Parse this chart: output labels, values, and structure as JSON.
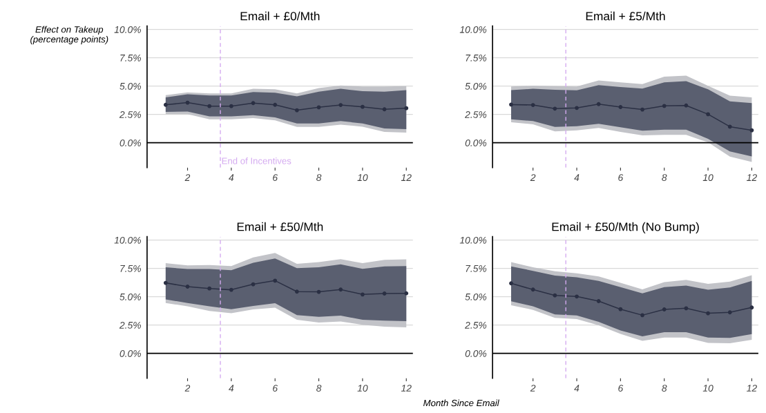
{
  "chart_data": [
    {
      "type": "line",
      "title": "Email + £0/Mth",
      "ylabel": "Effect on Takeup\n(percentage points)",
      "x": [
        1,
        2,
        3,
        4,
        5,
        6,
        7,
        8,
        9,
        10,
        11,
        12
      ],
      "series": [
        {
          "color": "#c2c3c8",
          "values": [
            null,
            null,
            null,
            null,
            null,
            null,
            null,
            null,
            null,
            null,
            null,
            null
          ],
          "lower": [
            2.52,
            2.52,
            2.07,
            2.07,
            2.17,
            1.97,
            1.4,
            1.4,
            1.6,
            1.42,
            0.96,
            0.9
          ],
          "upper": [
            4.2,
            4.45,
            4.35,
            4.35,
            4.76,
            4.72,
            4.35,
            4.82,
            5.06,
            4.96,
            4.96,
            5.0
          ]
        },
        {
          "color": "#5a5f70",
          "values": [
            null,
            null,
            null,
            null,
            null,
            null,
            null,
            null,
            null,
            null,
            null,
            null
          ],
          "lower": [
            2.72,
            2.76,
            2.32,
            2.32,
            2.44,
            2.24,
            1.71,
            1.71,
            1.91,
            1.71,
            1.26,
            1.2
          ],
          "upper": [
            4.0,
            4.27,
            4.17,
            4.17,
            4.47,
            4.41,
            4.1,
            4.51,
            4.76,
            4.55,
            4.51,
            4.65
          ]
        },
        {
          "color": "#2b3044",
          "values": [
            3.35,
            3.54,
            3.23,
            3.23,
            3.5,
            3.35,
            2.87,
            3.13,
            3.33,
            3.17,
            2.95,
            3.05
          ]
        }
      ],
      "xlim": [
        0.15,
        12.3
      ],
      "ylim": [
        -2.2,
        10.3
      ],
      "xticks": [
        2,
        4,
        6,
        8,
        10,
        12
      ],
      "yticks": [
        {
          "value": 0,
          "label": "0.0%"
        },
        {
          "value": 2.5,
          "label": "2.5%"
        },
        {
          "value": 5,
          "label": "5.0%"
        },
        {
          "value": 7.5,
          "label": "7.5%"
        },
        {
          "value": 10,
          "label": "10.0%"
        }
      ],
      "ref_lines": [
        {
          "axis": "y",
          "value": 0,
          "color": "#000000",
          "line_style": "solid"
        },
        {
          "axis": "x",
          "value": 3.5,
          "label": "End of Incentives",
          "color": "#d4aaf0",
          "line_style": "dashed"
        }
      ],
      "grid": "y",
      "legend": false,
      "marker": "circle"
    },
    {
      "type": "line",
      "title": "Email + £5/Mth",
      "x": [
        1,
        2,
        3,
        4,
        5,
        6,
        7,
        8,
        9,
        10,
        11,
        12
      ],
      "series": [
        {
          "color": "#c2c3c8",
          "values": [
            null,
            null,
            null,
            null,
            null,
            null,
            null,
            null,
            null,
            null,
            null,
            null
          ],
          "lower": [
            1.81,
            1.63,
            1.0,
            1.1,
            1.3,
            0.96,
            0.65,
            0.69,
            0.69,
            0.04,
            -1.22,
            -1.7
          ],
          "upper": [
            4.96,
            5.04,
            5.0,
            4.96,
            5.49,
            5.33,
            5.18,
            5.83,
            5.93,
            5.02,
            4.15,
            4.0
          ]
        },
        {
          "color": "#5a5f70",
          "values": [
            null,
            null,
            null,
            null,
            null,
            null,
            null,
            null,
            null,
            null,
            null,
            null
          ],
          "lower": [
            2.07,
            1.91,
            1.4,
            1.46,
            1.67,
            1.36,
            1.06,
            1.16,
            1.16,
            0.35,
            -0.77,
            -1.2
          ],
          "upper": [
            4.65,
            4.76,
            4.67,
            4.63,
            5.08,
            4.92,
            4.78,
            5.33,
            5.43,
            4.72,
            3.66,
            3.5
          ]
        },
        {
          "color": "#2b3044",
          "values": [
            3.37,
            3.33,
            3.01,
            3.07,
            3.41,
            3.15,
            2.93,
            3.25,
            3.29,
            2.52,
            1.42,
            1.1
          ]
        }
      ],
      "xlim": [
        0.15,
        12.3
      ],
      "ylim": [
        -2.2,
        10.3
      ],
      "xticks": [
        2,
        4,
        6,
        8,
        10,
        12
      ],
      "yticks": [
        {
          "value": 0,
          "label": "0.0%"
        },
        {
          "value": 2.5,
          "label": "2.5%"
        },
        {
          "value": 5,
          "label": "5.0%"
        },
        {
          "value": 7.5,
          "label": "7.5%"
        },
        {
          "value": 10,
          "label": "10.0%"
        }
      ],
      "ref_lines": [
        {
          "axis": "y",
          "value": 0,
          "color": "#000000",
          "line_style": "solid"
        },
        {
          "axis": "x",
          "value": 3.5,
          "color": "#d4aaf0",
          "line_style": "dashed"
        }
      ],
      "grid": "y",
      "legend": false,
      "marker": "circle"
    },
    {
      "type": "line",
      "title": "Email + £50/Mth",
      "x": [
        1,
        2,
        3,
        4,
        5,
        6,
        7,
        8,
        9,
        10,
        11,
        12
      ],
      "series": [
        {
          "color": "#c2c3c8",
          "values": [
            null,
            null,
            null,
            null,
            null,
            null,
            null,
            null,
            null,
            null,
            null,
            null
          ],
          "lower": [
            4.45,
            4.15,
            3.74,
            3.54,
            3.88,
            4.04,
            2.97,
            2.72,
            2.82,
            2.52,
            2.36,
            2.3
          ],
          "upper": [
            7.97,
            7.76,
            7.8,
            7.7,
            8.46,
            8.86,
            7.9,
            8.05,
            8.31,
            7.97,
            8.25,
            8.3
          ]
        },
        {
          "color": "#5a5f70",
          "values": [
            null,
            null,
            null,
            null,
            null,
            null,
            null,
            null,
            null,
            null,
            null,
            null
          ],
          "lower": [
            4.76,
            4.45,
            4.15,
            3.9,
            4.19,
            4.43,
            3.37,
            3.23,
            3.33,
            2.97,
            2.89,
            2.85
          ],
          "upper": [
            7.6,
            7.44,
            7.44,
            7.34,
            8.0,
            8.37,
            7.52,
            7.6,
            7.85,
            7.46,
            7.68,
            7.7
          ]
        },
        {
          "color": "#2b3044",
          "values": [
            6.22,
            5.89,
            5.73,
            5.61,
            6.1,
            6.42,
            5.45,
            5.43,
            5.63,
            5.2,
            5.28,
            5.3
          ]
        }
      ],
      "xlim": [
        0.15,
        12.3
      ],
      "ylim": [
        -2.2,
        10.3
      ],
      "xticks": [
        2,
        4,
        6,
        8,
        10,
        12
      ],
      "yticks": [
        {
          "value": 0,
          "label": "0.0%"
        },
        {
          "value": 2.5,
          "label": "2.5%"
        },
        {
          "value": 5,
          "label": "5.0%"
        },
        {
          "value": 7.5,
          "label": "7.5%"
        },
        {
          "value": 10,
          "label": "10.0%"
        }
      ],
      "ref_lines": [
        {
          "axis": "y",
          "value": 0,
          "color": "#000000",
          "line_style": "solid"
        },
        {
          "axis": "x",
          "value": 3.5,
          "color": "#d4aaf0",
          "line_style": "dashed"
        }
      ],
      "grid": "y",
      "legend": false,
      "marker": "circle"
    },
    {
      "type": "line",
      "title": "Email + £50/Mth (No Bump)",
      "xlabel": "Month Since Email",
      "x": [
        1,
        2,
        3,
        4,
        5,
        6,
        7,
        8,
        9,
        10,
        11,
        12
      ],
      "series": [
        {
          "color": "#c2c3c8",
          "values": [
            null,
            null,
            null,
            null,
            null,
            null,
            null,
            null,
            null,
            null,
            null,
            null
          ],
          "lower": [
            4.25,
            3.84,
            3.13,
            3.03,
            2.48,
            1.71,
            1.1,
            1.4,
            1.4,
            0.93,
            0.89,
            1.2
          ],
          "upper": [
            8.05,
            7.6,
            7.24,
            7.07,
            6.79,
            6.22,
            5.65,
            6.28,
            6.48,
            6.14,
            6.34,
            6.9
          ]
        },
        {
          "color": "#5a5f70",
          "values": [
            null,
            null,
            null,
            null,
            null,
            null,
            null,
            null,
            null,
            null,
            null,
            null
          ],
          "lower": [
            4.59,
            4.15,
            3.44,
            3.34,
            2.79,
            2.02,
            1.5,
            1.87,
            1.87,
            1.4,
            1.36,
            1.7
          ],
          "upper": [
            7.68,
            7.28,
            6.87,
            6.71,
            6.4,
            5.85,
            5.3,
            5.85,
            5.99,
            5.61,
            5.81,
            6.4
          ]
        },
        {
          "color": "#2b3044",
          "values": [
            6.18,
            5.63,
            5.12,
            5.02,
            4.61,
            3.9,
            3.37,
            3.88,
            3.98,
            3.54,
            3.62,
            4.05
          ]
        }
      ],
      "xlim": [
        0.15,
        12.3
      ],
      "ylim": [
        -2.2,
        10.3
      ],
      "xticks": [
        2,
        4,
        6,
        8,
        10,
        12
      ],
      "yticks": [
        {
          "value": 0,
          "label": "0.0%"
        },
        {
          "value": 2.5,
          "label": "2.5%"
        },
        {
          "value": 5,
          "label": "5.0%"
        },
        {
          "value": 7.5,
          "label": "7.5%"
        },
        {
          "value": 10,
          "label": "10.0%"
        }
      ],
      "ref_lines": [
        {
          "axis": "y",
          "value": 0,
          "color": "#000000",
          "line_style": "solid"
        },
        {
          "axis": "x",
          "value": 3.5,
          "color": "#d4aaf0",
          "line_style": "dashed"
        }
      ],
      "grid": "y",
      "legend": false,
      "marker": "circle"
    }
  ]
}
